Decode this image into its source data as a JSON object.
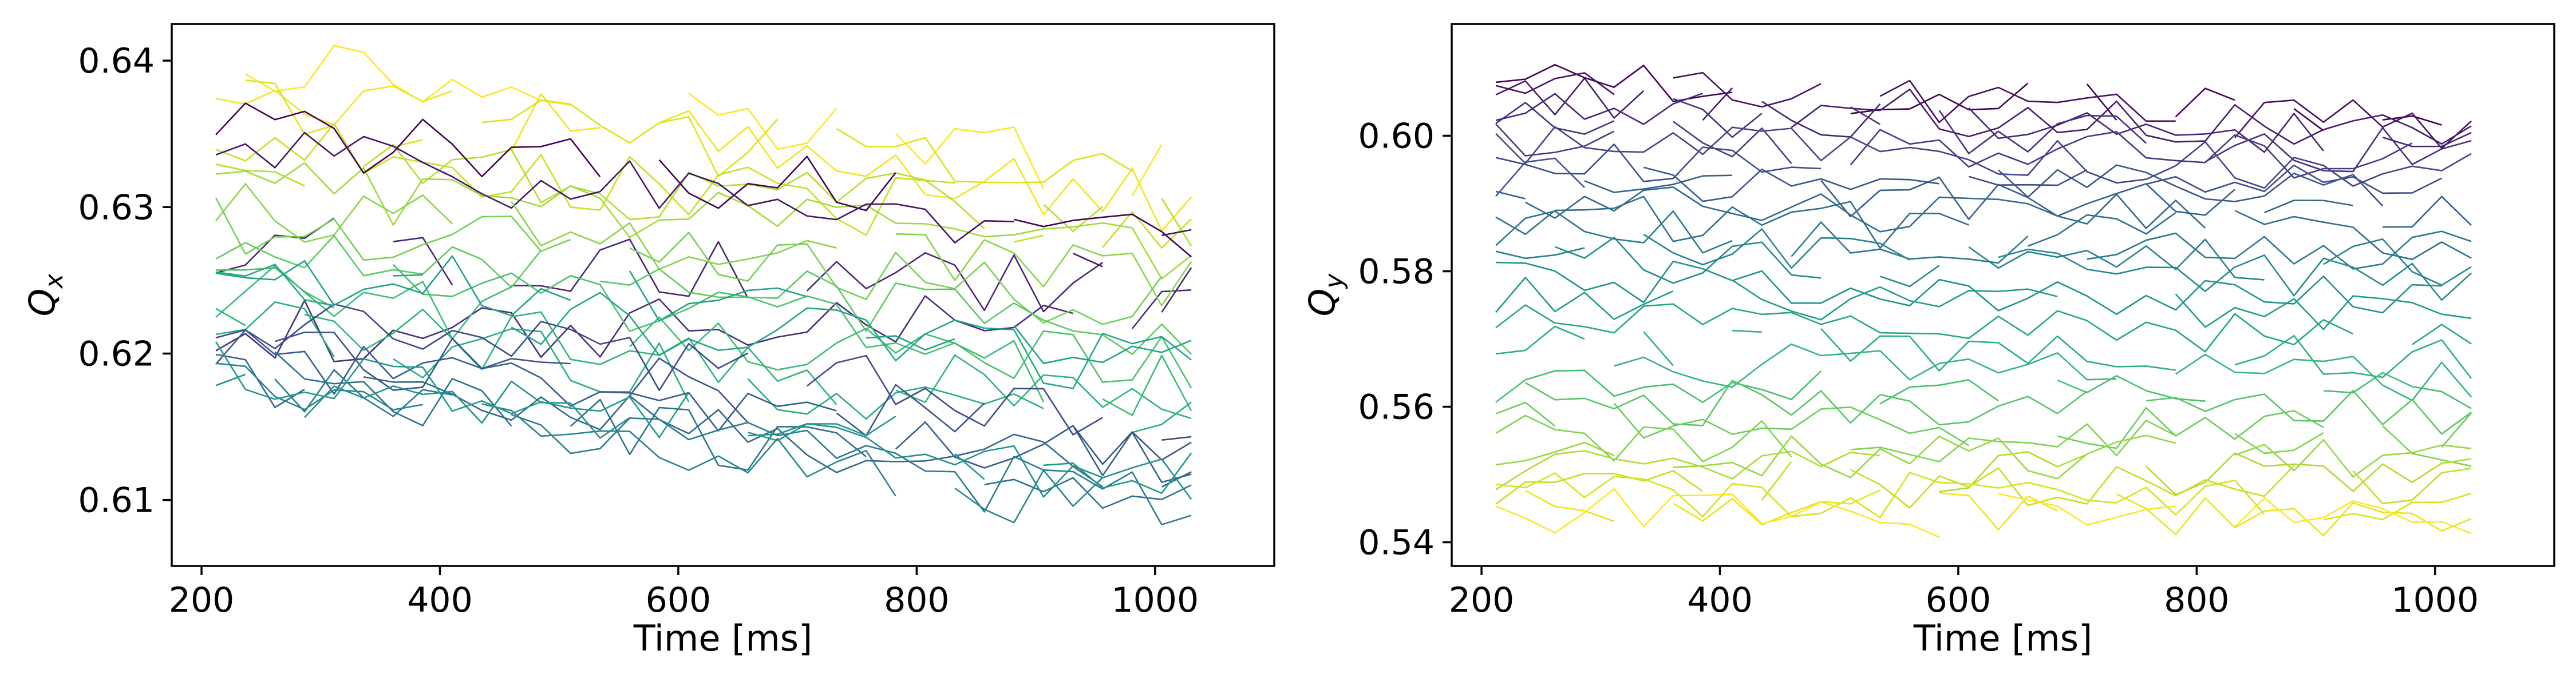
{
  "figure_type": "two-panel line chart (tune vs time, viridis-colored traces)",
  "colormap": "viridis",
  "colors": {
    "viridis_dark": "#440154",
    "viridis_mid": "#21918c",
    "viridis_light": "#fde725"
  },
  "chart_data": [
    {
      "type": "line",
      "title": "",
      "xlabel": "Time [ms]",
      "ylabel_base": "Q",
      "ylabel_sub": "x",
      "xlim": [
        175,
        1100
      ],
      "ylim": [
        0.6055,
        0.6425
      ],
      "xticks": [
        200,
        400,
        600,
        800,
        1000
      ],
      "xtick_labels": [
        "200",
        "400",
        "600",
        "800",
        "1000"
      ],
      "yticks": [
        0.61,
        0.62,
        0.63,
        0.64
      ],
      "ytick_labels": [
        "0.61",
        "0.62",
        "0.63",
        "0.64"
      ],
      "grid": false,
      "legend": "none",
      "x_start": 212,
      "x_end": 1055,
      "x_step": 24.8,
      "noise_amplitude": 0.0022,
      "series": [
        {
          "color": "#fde725",
          "start": 0.6405,
          "end": 0.632
        },
        {
          "color": "#f1e51d",
          "start": 0.6385,
          "end": 0.63
        },
        {
          "color": "#dde318",
          "start": 0.637,
          "end": 0.6315
        },
        {
          "color": "#c8e020",
          "start": 0.6345,
          "end": 0.628
        },
        {
          "color": "#b5de2b",
          "start": 0.633,
          "end": 0.629
        },
        {
          "color": "#9fda3a",
          "start": 0.6315,
          "end": 0.6265
        },
        {
          "color": "#440154",
          "start": 0.6355,
          "end": 0.6285
        },
        {
          "color": "#481467",
          "start": 0.634,
          "end": 0.627
        },
        {
          "color": "#482576",
          "start": 0.6275,
          "end": 0.624
        },
        {
          "color": "#472d7b",
          "start": 0.6215,
          "end": 0.6225
        },
        {
          "color": "#89d548",
          "start": 0.63,
          "end": 0.625
        },
        {
          "color": "#75d054",
          "start": 0.629,
          "end": 0.623
        },
        {
          "color": "#5ec962",
          "start": 0.6275,
          "end": 0.6215
        },
        {
          "color": "#4ac16d",
          "start": 0.626,
          "end": 0.619
        },
        {
          "color": "#3dbc74",
          "start": 0.6245,
          "end": 0.6175
        },
        {
          "color": "#2fb47c",
          "start": 0.623,
          "end": 0.616
        },
        {
          "color": "#28ae80",
          "start": 0.622,
          "end": 0.6145
        },
        {
          "color": "#3e4989",
          "start": 0.623,
          "end": 0.615
        },
        {
          "color": "#3b528b",
          "start": 0.621,
          "end": 0.6135
        },
        {
          "color": "#365c8d",
          "start": 0.62,
          "end": 0.6125
        },
        {
          "color": "#31688e",
          "start": 0.619,
          "end": 0.611
        },
        {
          "color": "#2c728e",
          "start": 0.6185,
          "end": 0.61
        },
        {
          "color": "#287c8e",
          "start": 0.618,
          "end": 0.6095
        },
        {
          "color": "#25858e",
          "start": 0.6175,
          "end": 0.609
        },
        {
          "color": "#21918c",
          "start": 0.6185,
          "end": 0.6105
        },
        {
          "color": "#1e9b8a",
          "start": 0.6195,
          "end": 0.6115
        },
        {
          "color": "#20a386",
          "start": 0.626,
          "end": 0.6205
        },
        {
          "color": "#22a884",
          "start": 0.6245,
          "end": 0.619
        }
      ]
    },
    {
      "type": "line",
      "title": "",
      "xlabel": "Time [ms]",
      "ylabel_base": "Q",
      "ylabel_sub": "y",
      "xlim": [
        175,
        1100
      ],
      "ylim": [
        0.5365,
        0.6165
      ],
      "xticks": [
        200,
        400,
        600,
        800,
        1000
      ],
      "xtick_labels": [
        "200",
        "400",
        "600",
        "800",
        "1000"
      ],
      "yticks": [
        0.54,
        0.56,
        0.58,
        0.6
      ],
      "ytick_labels": [
        "0.54",
        "0.56",
        "0.58",
        "0.60"
      ],
      "grid": false,
      "legend": "none",
      "x_start": 212,
      "x_end": 1055,
      "x_step": 24.8,
      "noise_amplitude": 0.0035,
      "series": [
        {
          "color": "#440154",
          "start": 0.609,
          "end": 0.6015
        },
        {
          "color": "#470e61",
          "start": 0.608,
          "end": 0.601
        },
        {
          "color": "#481a6c",
          "start": 0.606,
          "end": 0.6
        },
        {
          "color": "#482475",
          "start": 0.6045,
          "end": 0.599
        },
        {
          "color": "#472f7d",
          "start": 0.603,
          "end": 0.5975
        },
        {
          "color": "#443a83",
          "start": 0.6005,
          "end": 0.596
        },
        {
          "color": "#414487",
          "start": 0.599,
          "end": 0.5945
        },
        {
          "color": "#3e4c8a",
          "start": 0.5965,
          "end": 0.593
        },
        {
          "color": "#3a548c",
          "start": 0.5945,
          "end": 0.591
        },
        {
          "color": "#355f8d",
          "start": 0.592,
          "end": 0.589
        },
        {
          "color": "#31688e",
          "start": 0.59,
          "end": 0.587
        },
        {
          "color": "#2d708e",
          "start": 0.588,
          "end": 0.585
        },
        {
          "color": "#2a788e",
          "start": 0.586,
          "end": 0.583
        },
        {
          "color": "#26828e",
          "start": 0.584,
          "end": 0.581
        },
        {
          "color": "#238a8d",
          "start": 0.582,
          "end": 0.5785
        },
        {
          "color": "#1f928c",
          "start": 0.579,
          "end": 0.576
        },
        {
          "color": "#1e9c89",
          "start": 0.576,
          "end": 0.573
        },
        {
          "color": "#22a785",
          "start": 0.573,
          "end": 0.57
        },
        {
          "color": "#2ab07f",
          "start": 0.57,
          "end": 0.567
        },
        {
          "color": "#35b779",
          "start": 0.567,
          "end": 0.564
        },
        {
          "color": "#44bf70",
          "start": 0.564,
          "end": 0.5615
        },
        {
          "color": "#56c667",
          "start": 0.561,
          "end": 0.559
        },
        {
          "color": "#6ccd5a",
          "start": 0.558,
          "end": 0.5565
        },
        {
          "color": "#7fd34e",
          "start": 0.5555,
          "end": 0.5545
        },
        {
          "color": "#95d840",
          "start": 0.553,
          "end": 0.552
        },
        {
          "color": "#addc30",
          "start": 0.551,
          "end": 0.55
        },
        {
          "color": "#c2df23",
          "start": 0.549,
          "end": 0.548
        },
        {
          "color": "#d8e219",
          "start": 0.5475,
          "end": 0.546
        },
        {
          "color": "#eae51a",
          "start": 0.546,
          "end": 0.544
        },
        {
          "color": "#fde725",
          "start": 0.545,
          "end": 0.5425
        }
      ]
    }
  ]
}
